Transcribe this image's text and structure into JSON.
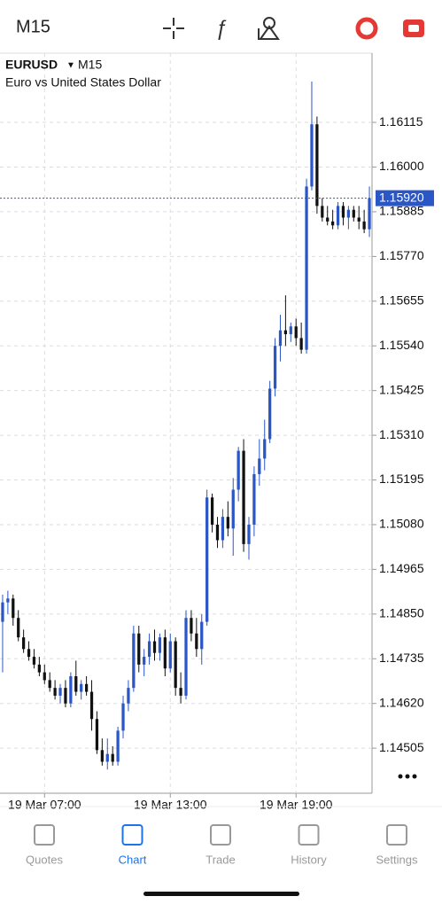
{
  "header": {
    "timeframe": "M15"
  },
  "chart_data": {
    "type": "candlestick",
    "symbol": "EURUSD",
    "timeframe": "M15",
    "description": "Euro vs United States Dollar",
    "categories": [
      null,
      null,
      null,
      null,
      null,
      null,
      null,
      null,
      "19 Mar 07:00",
      null,
      null,
      null,
      null,
      null,
      null,
      null,
      null,
      null,
      null,
      null,
      null,
      null,
      null,
      null,
      null,
      null,
      null,
      null,
      null,
      null,
      null,
      null,
      "19 Mar 13:00",
      null,
      null,
      null,
      null,
      null,
      null,
      null,
      null,
      null,
      null,
      null,
      null,
      null,
      null,
      null,
      null,
      null,
      null,
      null,
      null,
      null,
      null,
      null,
      "19 Mar 19:00",
      null,
      null,
      null,
      null,
      null,
      null,
      null,
      null,
      null,
      null,
      null,
      null,
      null,
      null
    ],
    "open": [
      1.1483,
      1.1488,
      1.1489,
      1.1484,
      1.1479,
      1.1476,
      1.1474,
      1.1472,
      1.147,
      1.1468,
      1.1466,
      1.1464,
      1.1466,
      1.1462,
      1.1469,
      1.1465,
      1.1467,
      1.1465,
      1.1458,
      1.145,
      1.1447,
      1.1449,
      1.1447,
      1.1455,
      1.1462,
      1.1466,
      1.148,
      1.1472,
      1.1474,
      1.1478,
      1.1475,
      1.1479,
      1.1471,
      1.1478,
      1.1466,
      1.1464,
      1.1484,
      1.148,
      1.1476,
      1.1483,
      1.1515,
      1.1508,
      1.1504,
      1.151,
      1.1507,
      1.1517,
      1.1527,
      1.1503,
      1.1508,
      1.1521,
      1.1525,
      1.153,
      1.1543,
      1.1554,
      1.1558,
      1.1557,
      1.1559,
      1.1556,
      1.1553,
      1.1595,
      1.1611,
      1.159,
      1.1587,
      1.1586,
      1.1585,
      1.159,
      1.1587,
      1.1589,
      1.1587,
      1.1586,
      1.1584
    ],
    "high": [
      1.149,
      1.1491,
      1.149,
      1.1486,
      1.1481,
      1.1478,
      1.1476,
      1.1474,
      1.1472,
      1.147,
      1.1468,
      1.1467,
      1.1468,
      1.147,
      1.1473,
      1.1468,
      1.1469,
      1.1468,
      1.146,
      1.1453,
      1.1453,
      1.1451,
      1.1456,
      1.1464,
      1.1468,
      1.1482,
      1.1482,
      1.1476,
      1.148,
      1.1481,
      1.148,
      1.1481,
      1.148,
      1.1479,
      1.147,
      1.1486,
      1.1486,
      1.1484,
      1.1485,
      1.1517,
      1.1516,
      1.151,
      1.1512,
      1.1514,
      1.152,
      1.1528,
      1.153,
      1.151,
      1.1523,
      1.153,
      1.1535,
      1.1545,
      1.1556,
      1.1562,
      1.1567,
      1.156,
      1.1561,
      1.156,
      1.1597,
      1.1622,
      1.1613,
      1.1592,
      1.159,
      1.1589,
      1.1591,
      1.1591,
      1.159,
      1.159,
      1.159,
      1.1589,
      1.1595
    ],
    "low": [
      1.147,
      1.1485,
      1.1482,
      1.1478,
      1.1475,
      1.1473,
      1.1471,
      1.1469,
      1.1467,
      1.1465,
      1.1463,
      1.1462,
      1.1461,
      1.1461,
      1.1464,
      1.1463,
      1.1464,
      1.1455,
      1.1449,
      1.1446,
      1.1445,
      1.1446,
      1.1446,
      1.1453,
      1.146,
      1.1465,
      1.147,
      1.1469,
      1.1472,
      1.1473,
      1.1473,
      1.1469,
      1.147,
      1.1464,
      1.1462,
      1.1463,
      1.1478,
      1.1474,
      1.1472,
      1.1482,
      1.1506,
      1.1502,
      1.1502,
      1.1505,
      1.15,
      1.1514,
      1.1501,
      1.1499,
      1.1505,
      1.1518,
      1.1522,
      1.1529,
      1.1541,
      1.155,
      1.1554,
      1.1555,
      1.1554,
      1.1552,
      1.1552,
      1.1594,
      1.1588,
      1.1586,
      1.1585,
      1.1584,
      1.1584,
      1.1585,
      1.1584,
      1.1586,
      1.1584,
      1.1583,
      1.1582
    ],
    "close": [
      1.1488,
      1.1489,
      1.1484,
      1.1479,
      1.1476,
      1.1474,
      1.1472,
      1.147,
      1.1468,
      1.1466,
      1.1464,
      1.1466,
      1.1462,
      1.1469,
      1.1465,
      1.1467,
      1.1465,
      1.1458,
      1.145,
      1.1447,
      1.1449,
      1.1447,
      1.1455,
      1.1462,
      1.1466,
      1.148,
      1.1472,
      1.1474,
      1.1478,
      1.1475,
      1.1479,
      1.1471,
      1.1478,
      1.1466,
      1.1464,
      1.1484,
      1.148,
      1.1476,
      1.1483,
      1.1515,
      1.1508,
      1.1504,
      1.151,
      1.1507,
      1.1517,
      1.1527,
      1.1503,
      1.1508,
      1.1521,
      1.1525,
      1.153,
      1.1543,
      1.1554,
      1.1558,
      1.1557,
      1.1559,
      1.1556,
      1.1553,
      1.1595,
      1.1611,
      1.159,
      1.1587,
      1.1586,
      1.1585,
      1.159,
      1.1587,
      1.1589,
      1.1587,
      1.1586,
      1.1584,
      1.1592
    ],
    "up_color": "#2a56c6",
    "down_color": "#111111",
    "ylim": [
      1.14389,
      1.16293
    ],
    "yticks": [
      1.16115,
      {
        "value": 1.16,
        "label": "1.16000"
      },
      1.15885,
      {
        "value": 1.1577,
        "label": "1.15770"
      },
      1.15655,
      {
        "value": 1.1554,
        "label": "1.15540"
      },
      1.15425,
      {
        "value": 1.1531,
        "label": "1.15310"
      },
      1.15195,
      {
        "value": 1.1508,
        "label": "1.15080"
      },
      1.14965,
      {
        "value": 1.1485,
        "label": "1.14850"
      },
      1.14735,
      {
        "value": 1.1462,
        "label": "1.14620"
      },
      1.14505
    ],
    "last_price": {
      "value": 1.1592,
      "label": "1.15920"
    },
    "grid": true
  },
  "tabs": [
    "Quotes",
    "Chart",
    "Trade",
    "History",
    "Settings"
  ],
  "active_tab": 1
}
